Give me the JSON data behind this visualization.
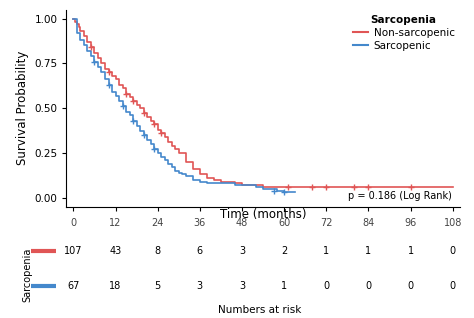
{
  "title": "",
  "xlabel": "Time (months)",
  "ylabel": "Survival Probability",
  "xlim": [
    -2,
    110
  ],
  "ylim": [
    -0.05,
    1.05
  ],
  "xticks": [
    0,
    12,
    24,
    36,
    48,
    60,
    72,
    84,
    96,
    108
  ],
  "yticks": [
    0.0,
    0.25,
    0.5,
    0.75,
    1.0
  ],
  "pvalue_text": "p = 0.186 (Log Rank)",
  "legend_title": "Sarcopenia",
  "legend_labels": [
    "Non-sarcopenic",
    "Sarcopenic"
  ],
  "color_red": "#E05555",
  "color_blue": "#4488CC",
  "numbers_at_risk_label": "Numbers at risk",
  "risk_times": [
    0,
    12,
    24,
    36,
    48,
    60,
    72,
    84,
    96,
    108
  ],
  "risk_red": [
    107,
    43,
    8,
    6,
    3,
    2,
    1,
    1,
    1,
    0
  ],
  "risk_blue": [
    67,
    18,
    5,
    3,
    3,
    1,
    0,
    0,
    0,
    0
  ],
  "km_red_x": [
    0,
    0.5,
    1,
    1.5,
    2,
    3,
    4,
    5,
    6,
    7,
    8,
    9,
    10,
    11,
    12,
    13,
    14,
    15,
    16,
    17,
    18,
    19,
    20,
    21,
    22,
    23,
    24,
    25,
    26,
    27,
    28,
    29,
    30,
    32,
    34,
    36,
    38,
    40,
    42,
    44,
    46,
    48,
    50,
    52,
    54,
    56,
    58,
    60,
    62,
    72,
    84,
    96,
    108
  ],
  "km_red_y": [
    1.0,
    0.98,
    0.97,
    0.95,
    0.93,
    0.9,
    0.87,
    0.84,
    0.81,
    0.78,
    0.75,
    0.72,
    0.7,
    0.68,
    0.66,
    0.63,
    0.61,
    0.58,
    0.56,
    0.54,
    0.52,
    0.5,
    0.47,
    0.45,
    0.43,
    0.41,
    0.38,
    0.36,
    0.34,
    0.31,
    0.29,
    0.27,
    0.25,
    0.2,
    0.16,
    0.13,
    0.11,
    0.1,
    0.09,
    0.09,
    0.08,
    0.07,
    0.07,
    0.07,
    0.06,
    0.06,
    0.06,
    0.06,
    0.06,
    0.06,
    0.06,
    0.06,
    0.06
  ],
  "km_blue_x": [
    0,
    1,
    2,
    3,
    4,
    5,
    6,
    7,
    8,
    9,
    10,
    11,
    12,
    13,
    14,
    15,
    16,
    17,
    18,
    19,
    20,
    21,
    22,
    23,
    24,
    25,
    26,
    27,
    28,
    29,
    30,
    31,
    32,
    34,
    36,
    38,
    40,
    42,
    44,
    46,
    48,
    50,
    52,
    54,
    56,
    58,
    60,
    62,
    63
  ],
  "km_blue_y": [
    1.0,
    0.92,
    0.88,
    0.85,
    0.82,
    0.79,
    0.76,
    0.73,
    0.7,
    0.66,
    0.63,
    0.59,
    0.57,
    0.54,
    0.51,
    0.48,
    0.46,
    0.43,
    0.4,
    0.37,
    0.35,
    0.32,
    0.3,
    0.27,
    0.25,
    0.23,
    0.21,
    0.19,
    0.17,
    0.15,
    0.14,
    0.13,
    0.12,
    0.1,
    0.09,
    0.08,
    0.08,
    0.08,
    0.08,
    0.07,
    0.07,
    0.07,
    0.06,
    0.05,
    0.05,
    0.04,
    0.03,
    0.03,
    0.03
  ],
  "censor_red_x": [
    5,
    10,
    15,
    17,
    20,
    23,
    25,
    61,
    68,
    72,
    80,
    84,
    96
  ],
  "censor_red_y": [
    0.84,
    0.7,
    0.58,
    0.54,
    0.47,
    0.41,
    0.36,
    0.06,
    0.06,
    0.06,
    0.06,
    0.06,
    0.06
  ],
  "censor_blue_x": [
    6,
    10,
    14,
    17,
    20,
    23,
    57,
    60
  ],
  "censor_blue_y": [
    0.76,
    0.63,
    0.51,
    0.43,
    0.35,
    0.27,
    0.04,
    0.03
  ],
  "background_color": "#ffffff",
  "font_size": 8.5
}
